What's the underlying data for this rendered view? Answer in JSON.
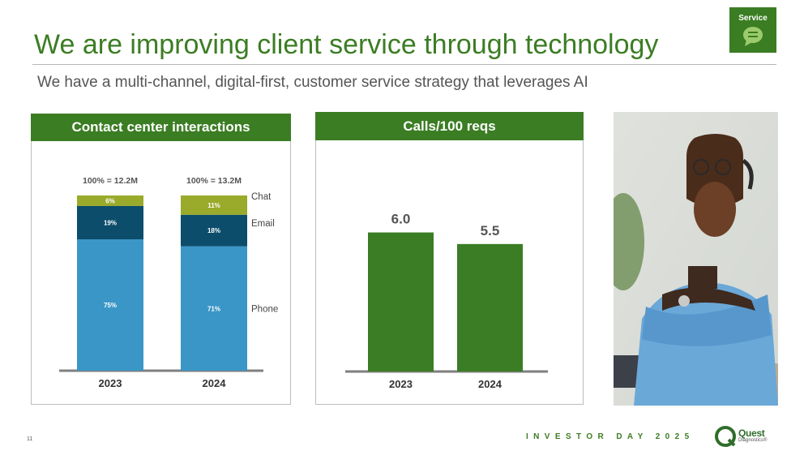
{
  "header": {
    "title": "We are improving client service through technology",
    "subtitle": "We have a multi-channel, digital-first, customer service strategy that leverages AI",
    "badge_label": "Service",
    "badge_icon": "speech-bubble-icon"
  },
  "colors": {
    "brand_green": "#3b7d23",
    "phone": "#3a96c6",
    "email": "#0b4d6b",
    "chat": "#9aaa2a",
    "bar_green": "#3a7d24"
  },
  "chart_data": [
    {
      "type": "bar",
      "stacked": true,
      "title": "Contact center interactions",
      "categories": [
        "2023",
        "2024"
      ],
      "totals": [
        "100% = 12.2M",
        "100% = 13.2M"
      ],
      "series": [
        {
          "name": "Phone",
          "values": [
            75,
            71
          ],
          "labels": [
            "75%",
            "71%"
          ]
        },
        {
          "name": "Email",
          "values": [
            19,
            18
          ],
          "labels": [
            "19%",
            "18%"
          ]
        },
        {
          "name": "Chat",
          "values": [
            6,
            11
          ],
          "labels": [
            "6%",
            "11%"
          ]
        }
      ],
      "ylim": [
        0,
        100
      ]
    },
    {
      "type": "bar",
      "title": "Calls/100 reqs",
      "categories": [
        "2023",
        "2024"
      ],
      "values": [
        6.0,
        5.5
      ],
      "labels": [
        "6.0",
        "5.5"
      ],
      "ylim": [
        0,
        8.4
      ]
    }
  ],
  "footer": {
    "page_number": "11",
    "event": "INVESTOR DAY 2025",
    "logo_name": "Quest",
    "logo_sub": "Diagnostics®"
  }
}
